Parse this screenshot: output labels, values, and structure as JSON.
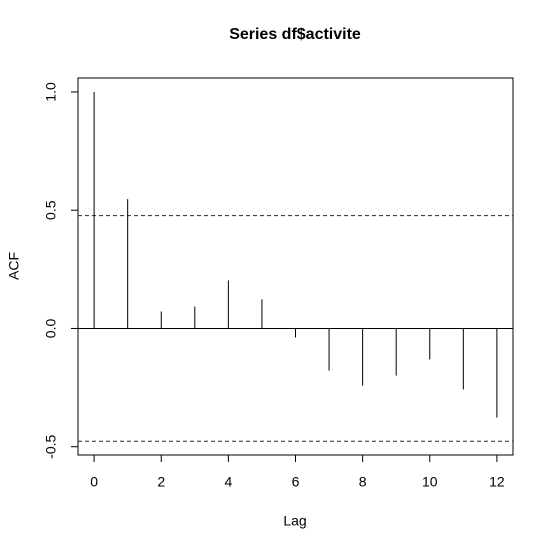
{
  "chart_data": {
    "type": "acf",
    "title": "Series  df$activite",
    "x_label": "Lag",
    "y_label": "ACF",
    "x": [
      0,
      1,
      2,
      3,
      4,
      5,
      6,
      7,
      8,
      9,
      10,
      11,
      12
    ],
    "values": [
      1.0,
      0.547,
      0.072,
      0.093,
      0.203,
      0.123,
      -0.038,
      -0.178,
      -0.242,
      -0.199,
      -0.131,
      -0.258,
      -0.377
    ],
    "color": "#000000",
    "ci": 0.477,
    "ci_color": "#1f1f7a",
    "xlim": [
      -0.48,
      12.48
    ],
    "xticks": [
      0,
      2,
      4,
      6,
      8,
      10,
      12
    ],
    "ylim": [
      -0.535,
      1.059
    ],
    "yticks": [
      -0.5,
      {
        "value": 0,
        "label": "0.0"
      },
      0.5,
      {
        "value": 1,
        "label": "1.0"
      }
    ]
  }
}
